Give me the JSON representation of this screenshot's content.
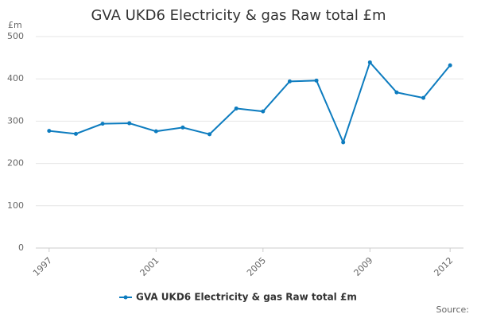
{
  "chart_data": {
    "type": "line",
    "title": "GVA UKD6 Electricity & gas Raw total £m",
    "y_label": "£m",
    "source": "Source:",
    "x": [
      1997,
      1998,
      1999,
      2000,
      2001,
      2002,
      2003,
      2004,
      2005,
      2006,
      2007,
      2008,
      2009,
      2010,
      2011,
      2012
    ],
    "series": [
      {
        "name": "GVA UKD6 Electricity & gas Raw total £m",
        "color": "#0d7cbf",
        "values": [
          277,
          270,
          294,
          295,
          276,
          285,
          269,
          330,
          323,
          394,
          396,
          250,
          439,
          368,
          355,
          432
        ]
      }
    ],
    "xlim": [
      1996.5,
      2012.5
    ],
    "xticks": [
      1997,
      2001,
      2005,
      2009,
      2012
    ],
    "ylim": [
      0,
      500
    ],
    "yticks": [
      0,
      100,
      200,
      300,
      400,
      500
    ],
    "grid": true
  }
}
